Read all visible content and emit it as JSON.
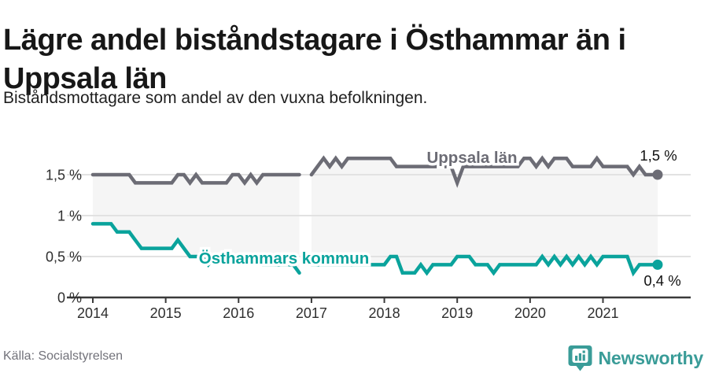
{
  "header": {
    "title": "Lägre andel biståndstagare i Östhammar än i Uppsala län",
    "subtitle": "Biståndsmottagare som andel av den vuxna befolkningen."
  },
  "footer": {
    "source": "Källa: Socialstyrelsen",
    "brand": "Newsworthy",
    "brand_icon": "bar-chart-pin-icon"
  },
  "colors": {
    "uppsala_line": "#6c6c75",
    "osthammar_line": "#0aa39c",
    "band_fill": "#f5f5f5",
    "gridline": "#e2e2e2",
    "axis": "#3a3a3a",
    "tick_text": "#2e2e2e",
    "value_label_text": "#111111",
    "brand_teal": "#3a9c98"
  },
  "chart_data": {
    "type": "line",
    "x_unit": "month",
    "x_start": "2014-01",
    "x_end": "2021-10",
    "x_tick_labels": [
      "2014",
      "2015",
      "2016",
      "2017",
      "2018",
      "2019",
      "2020",
      "2021"
    ],
    "y_ticks": [
      0,
      0.5,
      1,
      1.5
    ],
    "y_tick_labels": [
      "0 %",
      "0,5 %",
      "1 %",
      "1,5 %"
    ],
    "ylim": [
      0,
      1.85
    ],
    "grid": true,
    "note": "light grey band fills the gap between the two lines; data gap around Dec 2016",
    "series": [
      {
        "name": "Uppsala län",
        "end_label": "1,5 %",
        "values": [
          1.5,
          1.5,
          1.5,
          1.5,
          1.5,
          1.5,
          1.5,
          1.4,
          1.4,
          1.4,
          1.4,
          1.4,
          1.4,
          1.4,
          1.5,
          1.5,
          1.4,
          1.5,
          1.4,
          1.4,
          1.4,
          1.4,
          1.4,
          1.5,
          1.5,
          1.4,
          1.5,
          1.4,
          1.5,
          1.5,
          1.5,
          1.5,
          1.5,
          1.5,
          1.5,
          null,
          1.5,
          1.6,
          1.7,
          1.6,
          1.7,
          1.6,
          1.7,
          1.7,
          1.7,
          1.7,
          1.7,
          1.7,
          1.7,
          1.7,
          1.6,
          1.6,
          1.6,
          1.6,
          1.6,
          1.6,
          1.6,
          1.6,
          1.6,
          1.6,
          1.4,
          1.6,
          1.6,
          1.6,
          1.6,
          1.6,
          1.6,
          1.6,
          1.6,
          1.6,
          1.6,
          1.7,
          1.7,
          1.6,
          1.7,
          1.6,
          1.7,
          1.7,
          1.7,
          1.6,
          1.6,
          1.6,
          1.6,
          1.7,
          1.6,
          1.6,
          1.6,
          1.6,
          1.6,
          1.5,
          1.6,
          1.5,
          1.5,
          1.5
        ]
      },
      {
        "name": "Östhammars kommun",
        "end_label": "0,4 %",
        "values": [
          0.9,
          0.9,
          0.9,
          0.9,
          0.8,
          0.8,
          0.8,
          0.7,
          0.6,
          0.6,
          0.6,
          0.6,
          0.6,
          0.6,
          0.7,
          0.6,
          0.5,
          0.5,
          0.5,
          0.4,
          0.5,
          0.5,
          0.5,
          0.5,
          0.5,
          0.5,
          0.5,
          0.5,
          0.4,
          0.4,
          0.4,
          0.4,
          0.4,
          0.4,
          0.3,
          null,
          0.4,
          0.4,
          0.4,
          0.4,
          0.4,
          0.4,
          0.4,
          0.4,
          0.4,
          0.4,
          0.4,
          0.4,
          0.4,
          0.5,
          0.5,
          0.3,
          0.3,
          0.3,
          0.4,
          0.3,
          0.4,
          0.4,
          0.4,
          0.4,
          0.5,
          0.5,
          0.5,
          0.4,
          0.4,
          0.4,
          0.3,
          0.4,
          0.4,
          0.4,
          0.4,
          0.4,
          0.4,
          0.4,
          0.5,
          0.4,
          0.5,
          0.4,
          0.5,
          0.4,
          0.5,
          0.4,
          0.5,
          0.4,
          0.5,
          0.5,
          0.5,
          0.5,
          0.5,
          0.3,
          0.4,
          0.4,
          0.4,
          0.4
        ]
      }
    ]
  }
}
